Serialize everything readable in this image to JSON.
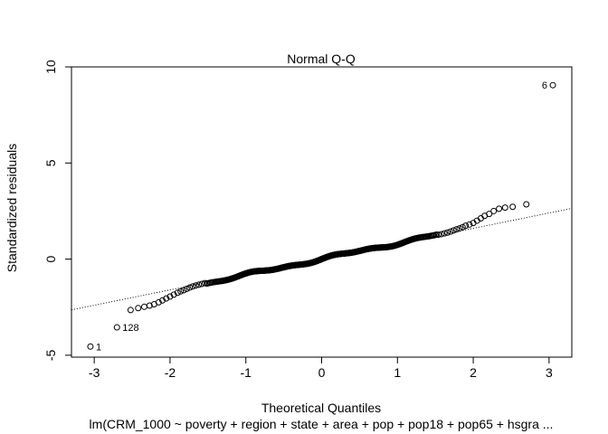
{
  "chart_data": {
    "type": "scatter",
    "title": "Normal Q-Q",
    "xlabel": "Theoretical Quantiles",
    "ylabel": "Standardized residuals",
    "subtitle": "lm(CRM_1000 ~ poverty + region + state + area + pop + pop18 + pop65 + hsgra ...",
    "xlim": [
      -3.3,
      3.3
    ],
    "ylim": [
      -5.1,
      10.0
    ],
    "xticks": [
      -3,
      -2,
      -1,
      0,
      1,
      2,
      3
    ],
    "xtick_labels": [
      "-3",
      "-2",
      "-1",
      "0",
      "1",
      "2",
      "3"
    ],
    "yticks": [
      -5,
      0,
      5,
      10
    ],
    "ytick_labels": [
      "-5",
      "0",
      "5",
      "10"
    ],
    "grid": false,
    "reference_line": {
      "slope": 0.8,
      "intercept": 0.0,
      "style": "dotted"
    },
    "series": [
      {
        "marker": "open-circle",
        "sample_size": 440,
        "points_low_tail": [
          [
            -2.52,
            -2.65
          ],
          [
            -2.42,
            -2.55
          ],
          [
            -2.34,
            -2.48
          ],
          [
            -2.27,
            -2.42
          ],
          [
            -2.21,
            -2.35
          ],
          [
            -2.15,
            -2.25
          ],
          [
            -2.1,
            -2.15
          ],
          [
            -2.05,
            -2.05
          ],
          [
            -2.0,
            -1.95
          ],
          [
            -1.95,
            -1.85
          ],
          [
            -1.9,
            -1.75
          ],
          [
            -1.86,
            -1.68
          ],
          [
            -1.82,
            -1.62
          ],
          [
            -1.78,
            -1.55
          ],
          [
            -1.74,
            -1.48
          ],
          [
            -1.7,
            -1.42
          ],
          [
            -1.66,
            -1.37
          ],
          [
            -1.62,
            -1.33
          ],
          [
            -1.58,
            -1.29
          ],
          [
            -1.54,
            -1.25
          ]
        ],
        "points_high_tail": [
          [
            1.54,
            1.27
          ],
          [
            1.58,
            1.3
          ],
          [
            1.62,
            1.34
          ],
          [
            1.66,
            1.38
          ],
          [
            1.7,
            1.43
          ],
          [
            1.74,
            1.49
          ],
          [
            1.78,
            1.55
          ],
          [
            1.82,
            1.6
          ],
          [
            1.86,
            1.66
          ],
          [
            1.9,
            1.74
          ],
          [
            1.95,
            1.8
          ],
          [
            2.0,
            1.88
          ],
          [
            2.05,
            2.0
          ],
          [
            2.1,
            2.12
          ],
          [
            2.15,
            2.25
          ],
          [
            2.21,
            2.35
          ],
          [
            2.27,
            2.5
          ],
          [
            2.34,
            2.62
          ],
          [
            2.42,
            2.68
          ],
          [
            2.52,
            2.72
          ],
          [
            2.7,
            2.85
          ]
        ],
        "labeled_points": [
          {
            "label": "6",
            "x": 3.05,
            "y": 9.05
          },
          {
            "label": "128",
            "x": -2.7,
            "y": -3.55
          },
          {
            "label": "1",
            "x": -3.05,
            "y": -4.55
          }
        ]
      }
    ]
  }
}
